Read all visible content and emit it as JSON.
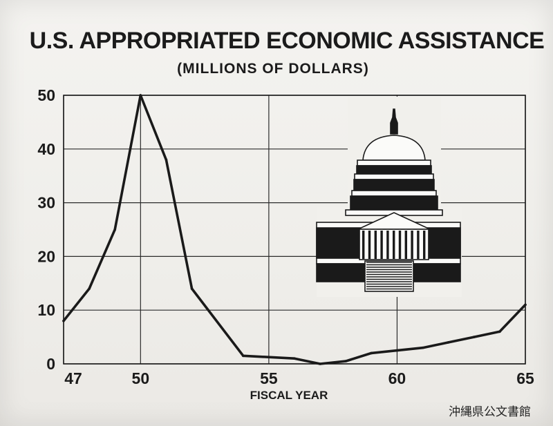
{
  "chart_data": {
    "type": "line",
    "title": "U.S. APPROPRIATED ECONOMIC ASSISTANCE",
    "subtitle": "(MILLIONS OF DOLLARS)",
    "xlabel": "FISCAL YEAR",
    "ylabel": "",
    "xlim": [
      47,
      65
    ],
    "ylim": [
      0,
      50
    ],
    "x_ticks": [
      "47",
      "50",
      "55",
      "60",
      "65"
    ],
    "y_ticks": [
      "0",
      "10",
      "20",
      "30",
      "40",
      "50"
    ],
    "grid": true,
    "series": [
      {
        "x": [
          47,
          48,
          49,
          50,
          51,
          52,
          54,
          56,
          57,
          58,
          59,
          60,
          61,
          62,
          63,
          64,
          65
        ],
        "values": [
          8,
          14,
          25,
          50,
          38,
          14,
          1.5,
          1,
          0,
          0.5,
          2,
          2.5,
          3,
          4,
          5,
          6,
          11
        ]
      }
    ],
    "illustration": "capitol-dome"
  },
  "watermark": "沖縄県公文書館"
}
